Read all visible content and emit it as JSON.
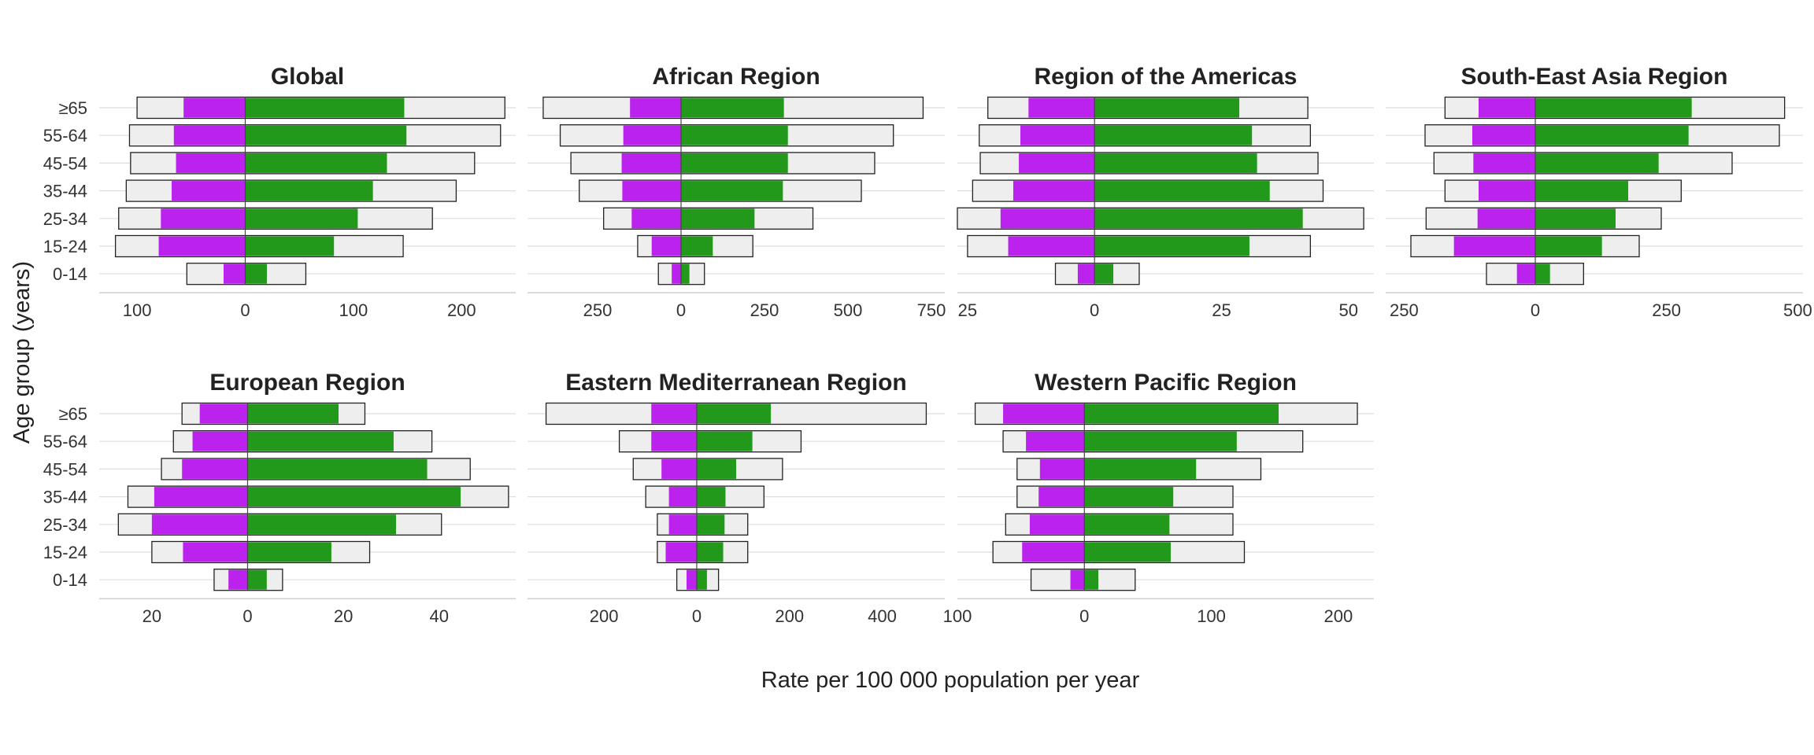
{
  "chart_data": {
    "type": "bar",
    "orientation": "horizontal",
    "subtype": "diverging small-multiples",
    "ylabel": "Age group (years)",
    "xlabel": "Rate per 100 000 population per year",
    "categories": [
      "0-14",
      "15-24",
      "25-34",
      "35-44",
      "45-54",
      "55-64",
      "≥65"
    ],
    "colors": {
      "female": "#bb22ee",
      "male": "#22991a",
      "outline_fill": "#eeeeee",
      "outline_stroke": "#222222"
    },
    "grid": true,
    "legend": "none",
    "panels": [
      {
        "title": "Global",
        "xlim": [
          -135,
          250
        ],
        "ticks": [
          -100,
          0,
          100,
          200
        ],
        "tick_labels": [
          "100",
          "0",
          "100",
          "200"
        ],
        "series": [
          {
            "side": "left",
            "role": "female",
            "values": [
              20,
              80,
              78,
              68,
              64,
              66,
              57
            ]
          },
          {
            "side": "right",
            "role": "male",
            "values": [
              20,
              82,
              104,
              118,
              131,
              149,
              147
            ]
          },
          {
            "side": "left",
            "role": "outline",
            "values": [
              54,
              120,
              117,
              110,
              106,
              107,
              100
            ]
          },
          {
            "side": "right",
            "role": "outline",
            "values": [
              56,
              146,
              173,
              195,
              212,
              236,
              240
            ]
          }
        ]
      },
      {
        "title": "African Region",
        "xlim": [
          -460,
          790
        ],
        "ticks": [
          -250,
          0,
          250,
          500,
          750
        ],
        "tick_labels": [
          "250",
          "0",
          "250",
          "500",
          "750"
        ],
        "series": [
          {
            "side": "left",
            "role": "female",
            "values": [
              28,
              88,
              148,
              176,
              178,
              173,
              153
            ]
          },
          {
            "side": "right",
            "role": "male",
            "values": [
              25,
              95,
              220,
              305,
              320,
              320,
              308
            ]
          },
          {
            "side": "left",
            "role": "outline",
            "values": [
              68,
              130,
              232,
              305,
              330,
              362,
              413
            ]
          },
          {
            "side": "right",
            "role": "outline",
            "values": [
              70,
              215,
              395,
              540,
              580,
              636,
              725
            ]
          }
        ]
      },
      {
        "title": "Region of the Americas",
        "xlim": [
          -27,
          55
        ],
        "ticks": [
          -25,
          0,
          25,
          50
        ],
        "tick_labels": [
          "25",
          "0",
          "25",
          "50"
        ],
        "series": [
          {
            "side": "left",
            "role": "female",
            "values": [
              3.3,
              17,
              18.5,
              16,
              14.9,
              14.6,
              13
            ]
          },
          {
            "side": "right",
            "role": "male",
            "values": [
              3.7,
              30.5,
              41,
              34.5,
              32,
              31,
              28.5
            ]
          },
          {
            "side": "left",
            "role": "outline",
            "values": [
              7.7,
              25,
              27,
              24,
              22.5,
              22.7,
              21
            ]
          },
          {
            "side": "right",
            "role": "outline",
            "values": [
              8.8,
              42.5,
              53,
              45,
              44,
              42.5,
              42
            ]
          }
        ]
      },
      {
        "title": "South-East Asia Region",
        "xlim": [
          -285,
          510
        ],
        "ticks": [
          -250,
          0,
          250,
          500
        ],
        "tick_labels": [
          "250",
          "0",
          "250",
          "500"
        ],
        "series": [
          {
            "side": "left",
            "role": "female",
            "values": [
              35,
              155,
              110,
              108,
              118,
              120,
              108
            ]
          },
          {
            "side": "right",
            "role": "male",
            "values": [
              28,
              127,
              153,
              177,
              235,
              292,
              298
            ]
          },
          {
            "side": "left",
            "role": "outline",
            "values": [
              93,
              237,
              208,
              172,
              193,
              210,
              172
            ]
          },
          {
            "side": "right",
            "role": "outline",
            "values": [
              92,
              198,
              240,
              278,
              375,
              465,
              475
            ]
          }
        ]
      },
      {
        "title": "European Region",
        "xlim": [
          -31,
          56
        ],
        "ticks": [
          -20,
          0,
          20,
          40
        ],
        "tick_labels": [
          "20",
          "0",
          "20",
          "40"
        ],
        "series": [
          {
            "side": "left",
            "role": "female",
            "values": [
              4,
              13.5,
              20,
              19.5,
              13.7,
              11.5,
              10
            ]
          },
          {
            "side": "right",
            "role": "male",
            "values": [
              4,
              17.5,
              31,
              44.5,
              37.5,
              30.5,
              19
            ]
          },
          {
            "side": "left",
            "role": "outline",
            "values": [
              7,
              20,
              27,
              25,
              18,
              15.5,
              13.7
            ]
          },
          {
            "side": "right",
            "role": "outline",
            "values": [
              7.3,
              25.5,
              40.5,
              54.5,
              46.5,
              38.5,
              24.5
            ]
          }
        ]
      },
      {
        "title": "Eastern Mediterranean Region",
        "xlim": [
          -365,
          535
        ],
        "ticks": [
          -200,
          0,
          200,
          400
        ],
        "tick_labels": [
          "200",
          "0",
          "200",
          "400"
        ],
        "series": [
          {
            "side": "left",
            "role": "female",
            "values": [
              22,
              67,
              60,
              60,
              76,
              98,
              98
            ]
          },
          {
            "side": "right",
            "role": "male",
            "values": [
              22,
              57,
              60,
              62,
              85,
              120,
              160
            ]
          },
          {
            "side": "left",
            "role": "outline",
            "values": [
              43,
              85,
              85,
              110,
              137,
              167,
              325
            ]
          },
          {
            "side": "right",
            "role": "outline",
            "values": [
              47,
              110,
              110,
              145,
              185,
              225,
              495
            ]
          }
        ]
      },
      {
        "title": "Western Pacific Region",
        "xlim": [
          -100,
          228
        ],
        "ticks": [
          -100,
          0,
          100,
          200
        ],
        "tick_labels": [
          "100",
          "0",
          "100",
          "200"
        ],
        "series": [
          {
            "side": "left",
            "role": "female",
            "values": [
              11,
              49,
              43,
              36,
              35,
              46,
              64
            ]
          },
          {
            "side": "right",
            "role": "male",
            "values": [
              11,
              68,
              67,
              70,
              88,
              120,
              153
            ]
          },
          {
            "side": "left",
            "role": "outline",
            "values": [
              42,
              72,
              62,
              53,
              53,
              64,
              86
            ]
          },
          {
            "side": "right",
            "role": "outline",
            "values": [
              40,
              126,
              117,
              117,
              139,
              172,
              215
            ]
          }
        ]
      }
    ]
  }
}
